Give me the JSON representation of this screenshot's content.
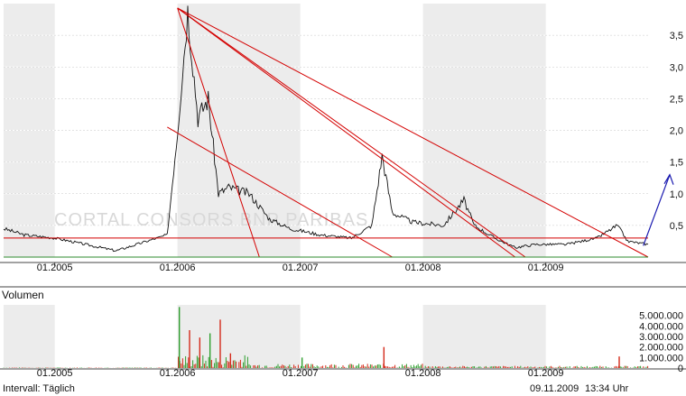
{
  "chart_data": [
    {
      "type": "line",
      "title": "",
      "ylim": [
        0,
        4.0
      ],
      "y_ticks": [
        "0,5",
        "1,0",
        "1,5",
        "2,0",
        "2,5",
        "3,0",
        "3,5"
      ],
      "x_ticks": [
        "01.2005",
        "01.2006",
        "01.2007",
        "01.2008",
        "01.2009"
      ],
      "x_range": [
        "2004-08",
        "2009-11"
      ],
      "grid": true,
      "watermark": "CORTAL CONSORS BNP PARIBAS",
      "series": [
        {
          "x": [
            "2004-08",
            "2004-10",
            "2005-01",
            "2005-04",
            "2005-07",
            "2005-10",
            "2005-12",
            "2006-01",
            "2006-02",
            "2006-03",
            "2006-04",
            "2006-05",
            "2006-06",
            "2006-08",
            "2006-10",
            "2006-12",
            "2007-03",
            "2007-06",
            "2007-08",
            "2007-09",
            "2007-10",
            "2007-12",
            "2008-03",
            "2008-05",
            "2008-06",
            "2008-08",
            "2008-10",
            "2008-12",
            "2009-03",
            "2009-06",
            "2009-08",
            "2009-09",
            "2009-11"
          ],
          "values": [
            0.45,
            0.35,
            0.3,
            0.2,
            0.1,
            0.25,
            0.35,
            2.0,
            3.9,
            2.2,
            2.5,
            1.0,
            1.1,
            1.0,
            0.6,
            0.45,
            0.35,
            0.3,
            0.5,
            1.6,
            0.7,
            0.55,
            0.5,
            0.9,
            0.5,
            0.3,
            0.15,
            0.2,
            0.2,
            0.3,
            0.5,
            0.25,
            0.2
          ]
        }
      ],
      "trendlines": [
        {
          "from": [
            "2006-01",
            3.93
          ],
          "to": [
            "2006-09",
            0.0
          ],
          "color": "#d40000"
        },
        {
          "from": [
            "2006-01",
            3.93
          ],
          "to": [
            "2008-10",
            0.0
          ],
          "color": "#d40000"
        },
        {
          "from": [
            "2006-01",
            3.93
          ],
          "to": [
            "2008-11",
            0.0
          ],
          "color": "#d40000"
        },
        {
          "from": [
            "2006-01",
            3.93
          ],
          "to": [
            "2009-11",
            0.0
          ],
          "color": "#d40000"
        },
        {
          "from": [
            "2005-12",
            2.05
          ],
          "to": [
            "2007-10",
            0.0
          ],
          "color": "#d40000"
        },
        {
          "from": [
            "2004-08",
            0.3
          ],
          "to": [
            "2009-11",
            0.3
          ],
          "color": "#d40000"
        },
        {
          "from": [
            "2004-08",
            0.0
          ],
          "to": [
            "2009-11",
            0.0
          ],
          "color": "#2e8b2e"
        }
      ],
      "arrow": {
        "from": [
          "2009-10",
          0.18
        ],
        "to": [
          "2009-11",
          1.3
        ],
        "color": "#1a1ab0"
      }
    },
    {
      "type": "bar",
      "title": "Volumen",
      "ylim": [
        0,
        6000000
      ],
      "y_ticks": [
        "5.000.000",
        "4.000.000",
        "3.000.000",
        "2.000.000",
        "1.000.000",
        "0"
      ],
      "x_ticks": [
        "01.2005",
        "01.2006",
        "01.2007",
        "01.2008",
        "01.2009"
      ],
      "colors": {
        "up": "#2e9e2e",
        "down": "#d42a1a"
      },
      "spikes": [
        {
          "x": "2006-01",
          "value": 5800000
        },
        {
          "x": "2006-02",
          "value": 3600000
        },
        {
          "x": "2006-03",
          "value": 2900000
        },
        {
          "x": "2006-04",
          "value": 3300000
        },
        {
          "x": "2006-05",
          "value": 4600000
        },
        {
          "x": "2006-06",
          "value": 1400000
        },
        {
          "x": "2007-01",
          "value": 1000000
        },
        {
          "x": "2007-09",
          "value": 2000000
        },
        {
          "x": "2009-08",
          "value": 1100000
        }
      ]
    }
  ],
  "footer": {
    "interval": "Intervall: Täglich",
    "date": "09.11.2009",
    "time": "13:34 Uhr"
  }
}
